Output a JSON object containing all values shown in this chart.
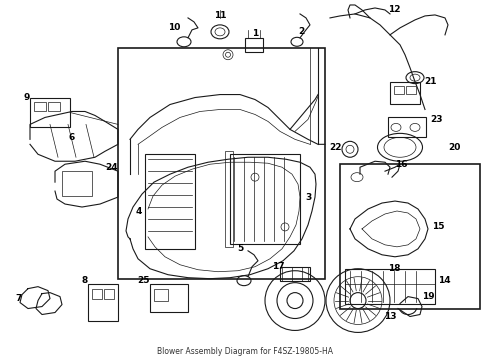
{
  "bg_color": "#ffffff",
  "line_color": "#1a1a1a",
  "text_color": "#000000",
  "fig_width": 4.9,
  "fig_height": 3.6,
  "dpi": 100,
  "subtitle": "Blower Assembly Diagram for F4SZ-19805-HA",
  "subtitle_fs": 5.5
}
